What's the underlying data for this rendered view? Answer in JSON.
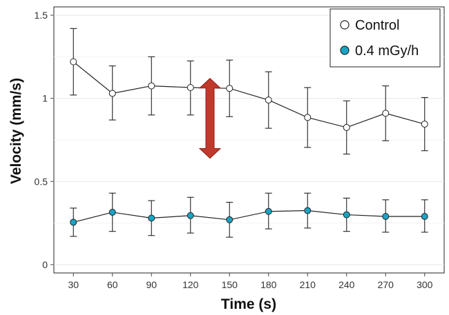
{
  "chart_data": {
    "type": "line",
    "title": "",
    "xlabel": "Time (s)",
    "ylabel": "Velocity (mm/s)",
    "x": [
      30,
      60,
      90,
      120,
      150,
      180,
      210,
      240,
      270,
      300
    ],
    "x_tick_labels": [
      "30",
      "60",
      "90",
      "120",
      "150",
      "180",
      "210",
      "240",
      "270",
      "300"
    ],
    "y_tick_values": [
      0,
      0.5,
      1,
      1.5
    ],
    "y_tick_labels": [
      "0",
      "0.5",
      "1",
      "1.5"
    ],
    "ylim": [
      -0.05,
      1.55
    ],
    "grid": true,
    "legend_position": "top-right",
    "series": [
      {
        "name": "Control",
        "marker_fill": "#ffffff",
        "values": [
          1.22,
          1.03,
          1.075,
          1.065,
          1.06,
          0.99,
          0.885,
          0.825,
          0.91,
          0.845
        ],
        "err_low": [
          1.02,
          0.87,
          0.9,
          0.9,
          0.89,
          0.82,
          0.705,
          0.665,
          0.745,
          0.685
        ],
        "err_high": [
          1.42,
          1.195,
          1.25,
          1.225,
          1.23,
          1.16,
          1.065,
          0.985,
          1.075,
          1.005
        ]
      },
      {
        "name": "0.4 mGy/h",
        "marker_fill": "#1aa3c4",
        "values": [
          0.255,
          0.315,
          0.28,
          0.295,
          0.27,
          0.32,
          0.325,
          0.3,
          0.29,
          0.29
        ],
        "err_low": [
          0.17,
          0.2,
          0.175,
          0.19,
          0.165,
          0.215,
          0.22,
          0.2,
          0.195,
          0.195
        ],
        "err_high": [
          0.34,
          0.43,
          0.385,
          0.405,
          0.375,
          0.43,
          0.43,
          0.4,
          0.39,
          0.39
        ]
      }
    ],
    "annotation": {
      "type": "double-arrow",
      "x": 135,
      "y_top": 1.12,
      "y_bottom": 0.64,
      "color": "#c0392b"
    }
  }
}
